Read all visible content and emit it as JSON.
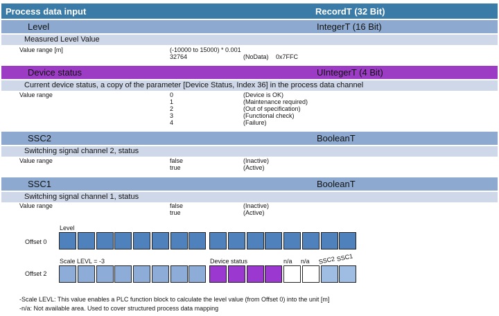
{
  "header": {
    "title": "Process data input",
    "type": "RecordT (32 Bit)"
  },
  "level": {
    "name": "Level",
    "type": "IntegerT (16 Bit)",
    "description": "Measured Level Value",
    "range_label": "Value range [m]",
    "range_formula": "(-10000 to 15000) * 0.001",
    "special_value": "32764",
    "special_meaning": "(NoData)",
    "special_hex": "0x7FFC"
  },
  "device_status": {
    "name": "Device status",
    "type": "UIntegerT (4 Bit)",
    "description": "Current device status, a copy of the parameter [Device Status, Index 36] in the process data channel",
    "range_label": "Value range",
    "values": [
      {
        "value": "0",
        "meaning": "(Device is OK)"
      },
      {
        "value": "1",
        "meaning": "(Maintenance required)"
      },
      {
        "value": "2",
        "meaning": "(Out of specification)"
      },
      {
        "value": "3",
        "meaning": "(Functional check)"
      },
      {
        "value": "4",
        "meaning": "(Failure)"
      }
    ]
  },
  "ssc2": {
    "name": "SSC2",
    "type": "BooleanT",
    "description": "Switching signal channel 2, status",
    "range_label": "Value range",
    "values": [
      {
        "value": "false",
        "meaning": "(Inactive)"
      },
      {
        "value": "true",
        "meaning": "(Active)"
      }
    ]
  },
  "ssc1": {
    "name": "SSC1",
    "type": "BooleanT",
    "description": "Switching signal channel 1, status",
    "range_label": "Value range",
    "values": [
      {
        "value": "false",
        "meaning": "(Inactive)"
      },
      {
        "value": "true",
        "meaning": "(Active)"
      }
    ]
  },
  "diagram": {
    "offset0_label": "Offset 0",
    "offset2_label": "Offset 2",
    "level_label": "Level",
    "scale_label": "Scale LEVL = -3",
    "device_status_label": "Device status",
    "na1": "n/a",
    "na2": "n/a",
    "ssc2_label": "SSC2",
    "ssc1_label": "SSC1"
  },
  "notes": {
    "scale": "-Scale LEVL: This value enables a PLC function block to calculate the level value (from Offset 0) into the unit [m]",
    "na": "-n/a: Not available area. Used to cover structured process data mapping"
  },
  "colors": {
    "header": "#3a7ba7",
    "level_band": "#8da9cf",
    "status_band": "#9c3cc4",
    "desc_band": "#cfd8e8"
  }
}
